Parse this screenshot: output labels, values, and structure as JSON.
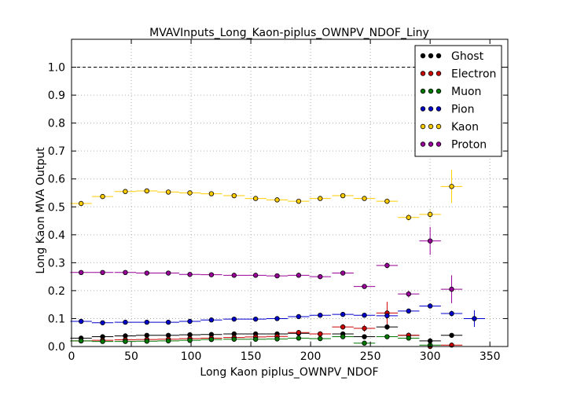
{
  "chart_data": {
    "type": "scatter",
    "title": "MVAVInputs_Long_Kaon-piplus_OWNPV_NDOF_Liny",
    "xlabel": "Long Kaon piplus_OWNPV_NDOF",
    "ylabel": "Long Kaon MVA Output",
    "xlim": [
      0,
      365
    ],
    "ylim": [
      0,
      1.1
    ],
    "xticks": [
      0,
      50,
      100,
      150,
      200,
      250,
      300,
      350
    ],
    "yticks": [
      0.0,
      0.1,
      0.2,
      0.3,
      0.4,
      0.5,
      0.6,
      0.7,
      0.8,
      0.9,
      1.0
    ],
    "xtick_labels": [
      "0",
      "50",
      "100",
      "150",
      "200",
      "250",
      "300",
      "350"
    ],
    "ytick_labels": [
      "0.0",
      "0.1",
      "0.2",
      "0.3",
      "0.4",
      "0.5",
      "0.6",
      "0.7",
      "0.8",
      "0.9",
      "1.0"
    ],
    "reference_line": 1.0,
    "grid": true,
    "legend_position": "top-right",
    "series": [
      {
        "name": "Ghost",
        "color": "#000000",
        "x": [
          8,
          26,
          45,
          63,
          81,
          99,
          117,
          136,
          154,
          172,
          190,
          208,
          227,
          245,
          264,
          282,
          300,
          318
        ],
        "y": [
          0.03,
          0.035,
          0.038,
          0.04,
          0.04,
          0.042,
          0.043,
          0.045,
          0.045,
          0.045,
          0.047,
          0.045,
          0.045,
          0.035,
          0.07,
          0.04,
          0.02,
          0.04
        ],
        "yerr": [
          0.003,
          0.003,
          0.003,
          0.003,
          0.003,
          0.003,
          0.003,
          0.003,
          0.003,
          0.003,
          0.004,
          0.004,
          0.004,
          0.005,
          0.01,
          0.006,
          0.01,
          0.006
        ]
      },
      {
        "name": "Electron",
        "color": "#cc0000",
        "x": [
          8,
          26,
          45,
          63,
          81,
          99,
          117,
          136,
          154,
          172,
          190,
          208,
          227,
          245,
          264,
          282,
          300,
          318
        ],
        "y": [
          0.02,
          0.022,
          0.024,
          0.025,
          0.026,
          0.028,
          0.03,
          0.032,
          0.034,
          0.036,
          0.05,
          0.045,
          0.07,
          0.065,
          0.12,
          0.04,
          0.0,
          0.005
        ],
        "yerr": [
          0.002,
          0.002,
          0.002,
          0.002,
          0.002,
          0.002,
          0.003,
          0.003,
          0.003,
          0.004,
          0.006,
          0.006,
          0.01,
          0.012,
          0.04,
          0.01,
          0.005,
          0.004
        ]
      },
      {
        "name": "Muon",
        "color": "#007700",
        "x": [
          8,
          26,
          45,
          63,
          81,
          99,
          117,
          136,
          154,
          172,
          190,
          208,
          227,
          245,
          264,
          282,
          300
        ],
        "y": [
          0.02,
          0.018,
          0.018,
          0.019,
          0.02,
          0.022,
          0.025,
          0.026,
          0.026,
          0.027,
          0.03,
          0.028,
          0.035,
          0.012,
          0.035,
          0.03,
          0.005
        ],
        "yerr": [
          0.002,
          0.002,
          0.002,
          0.002,
          0.002,
          0.002,
          0.002,
          0.002,
          0.002,
          0.003,
          0.003,
          0.003,
          0.004,
          0.004,
          0.006,
          0.005,
          0.003
        ]
      },
      {
        "name": "Pion",
        "color": "#0000cc",
        "x": [
          8,
          26,
          45,
          63,
          81,
          99,
          117,
          136,
          154,
          172,
          190,
          208,
          227,
          245,
          264,
          282,
          300,
          318,
          337
        ],
        "y": [
          0.09,
          0.085,
          0.087,
          0.087,
          0.087,
          0.09,
          0.095,
          0.098,
          0.098,
          0.1,
          0.107,
          0.112,
          0.115,
          0.112,
          0.11,
          0.127,
          0.145,
          0.118,
          0.1
        ],
        "yerr": [
          0.003,
          0.003,
          0.003,
          0.003,
          0.003,
          0.003,
          0.003,
          0.003,
          0.003,
          0.003,
          0.004,
          0.004,
          0.004,
          0.005,
          0.006,
          0.006,
          0.008,
          0.01,
          0.03
        ]
      },
      {
        "name": "Kaon",
        "color": "#ffcc00",
        "x": [
          8,
          26,
          45,
          63,
          81,
          99,
          117,
          136,
          154,
          172,
          190,
          208,
          227,
          245,
          264,
          282,
          300,
          318
        ],
        "y": [
          0.512,
          0.537,
          0.555,
          0.557,
          0.553,
          0.55,
          0.547,
          0.54,
          0.53,
          0.525,
          0.52,
          0.53,
          0.54,
          0.53,
          0.52,
          0.462,
          0.473,
          0.573
        ],
        "yerr": [
          0.004,
          0.004,
          0.004,
          0.004,
          0.004,
          0.004,
          0.004,
          0.004,
          0.004,
          0.005,
          0.005,
          0.006,
          0.007,
          0.008,
          0.01,
          0.012,
          0.015,
          0.06
        ]
      },
      {
        "name": "Proton",
        "color": "#990099",
        "x": [
          8,
          26,
          45,
          63,
          81,
          99,
          117,
          136,
          154,
          172,
          190,
          208,
          227,
          245,
          264,
          282,
          300,
          318
        ],
        "y": [
          0.265,
          0.265,
          0.265,
          0.263,
          0.263,
          0.258,
          0.257,
          0.255,
          0.255,
          0.253,
          0.255,
          0.25,
          0.263,
          0.215,
          0.29,
          0.188,
          0.378,
          0.205
        ],
        "yerr": [
          0.004,
          0.004,
          0.004,
          0.004,
          0.004,
          0.004,
          0.004,
          0.004,
          0.004,
          0.004,
          0.005,
          0.005,
          0.006,
          0.008,
          0.01,
          0.012,
          0.05,
          0.05
        ]
      }
    ],
    "bin_half_width": 9
  }
}
